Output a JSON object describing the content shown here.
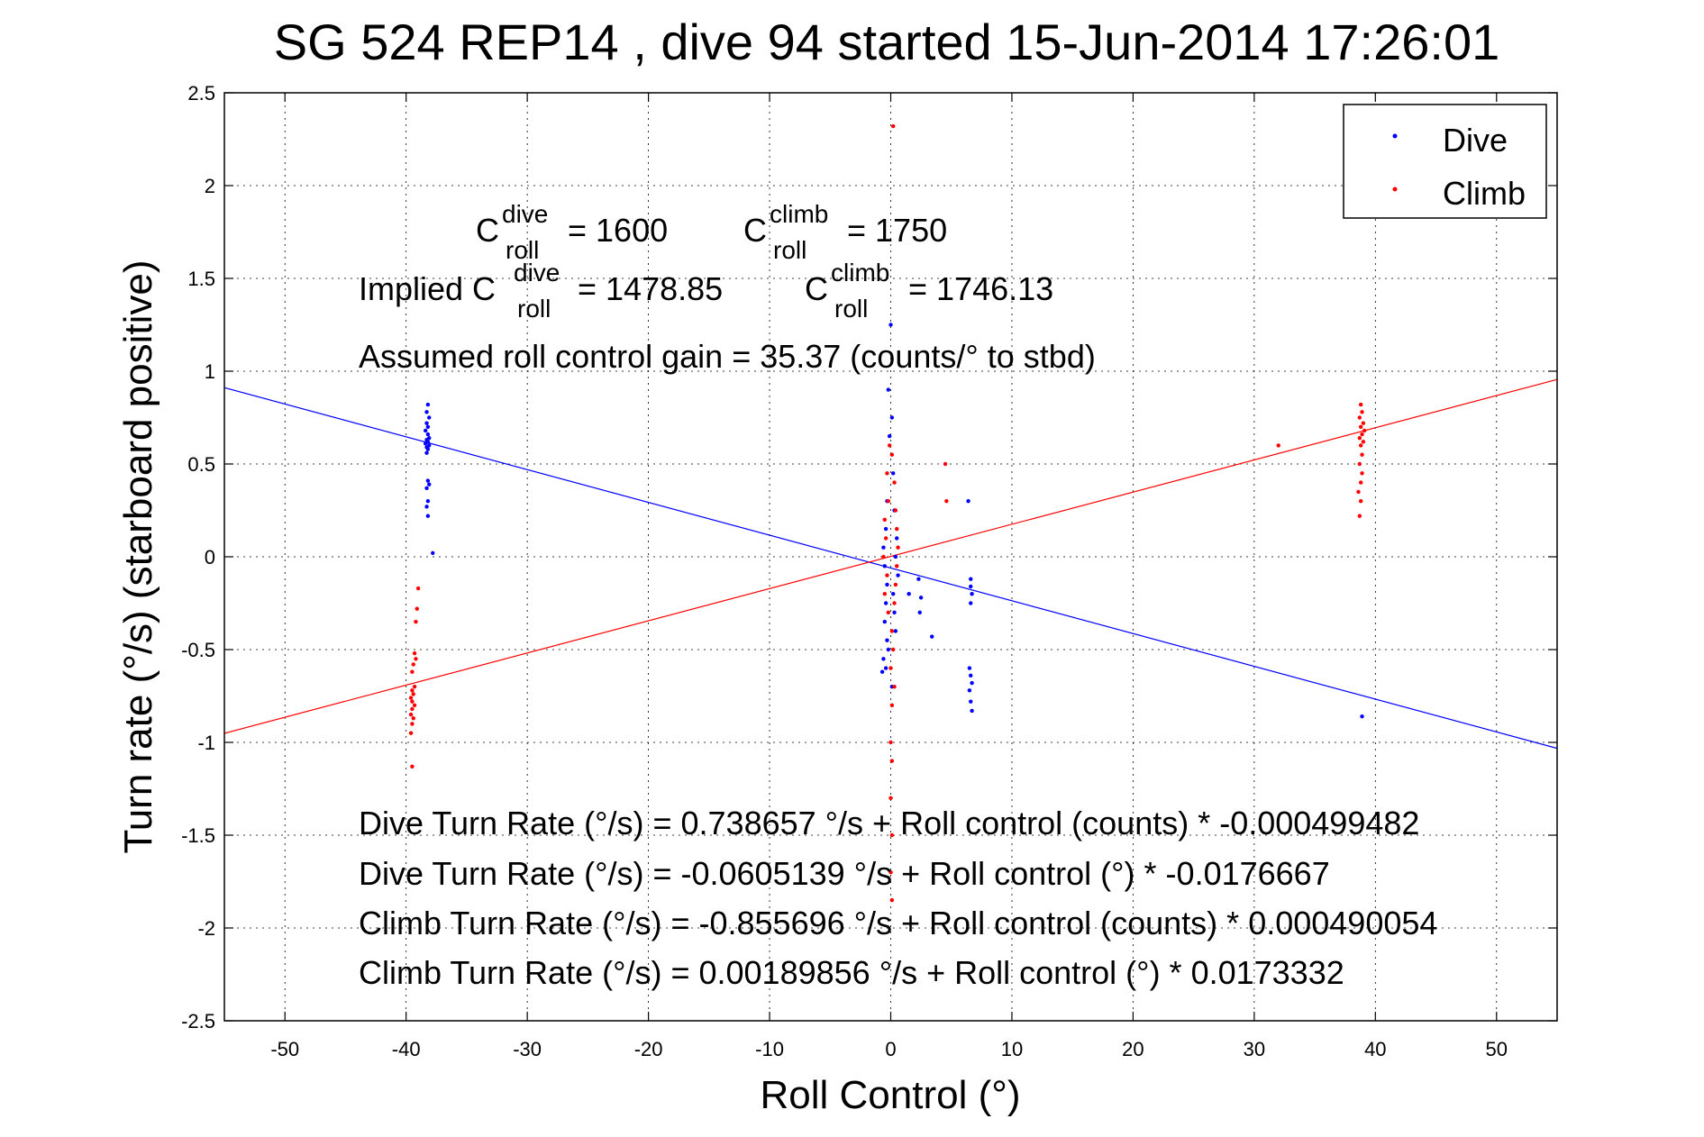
{
  "chart_data": {
    "type": "scatter",
    "title": "SG 524   REP14  , dive 94 started 15-Jun-2014 17:26:01",
    "xlabel": "Roll Control (°)",
    "ylabel": "Turn rate (°/s)  (starboard positive)",
    "xlim": [
      -55,
      55
    ],
    "ylim": [
      -2.5,
      2.5
    ],
    "xticks": [
      "-50",
      "-40",
      "-30",
      "-20",
      "-10",
      "0",
      "10",
      "20",
      "30",
      "40",
      "50"
    ],
    "yticks": [
      "2.5",
      "2",
      "1.5",
      "1",
      "0.5",
      "0",
      "-0.5",
      "-1",
      "-1.5",
      "-2",
      "-2.5"
    ],
    "grid": true,
    "legend_position": "top-right",
    "colors": {
      "dive": "#0000ff",
      "climb": "#ff0000"
    },
    "series": [
      {
        "name": "Dive",
        "color": "#0000ff",
        "points": [
          [
            -38.2,
            0.82
          ],
          [
            -38.3,
            0.78
          ],
          [
            -38.1,
            0.75
          ],
          [
            -38.3,
            0.72
          ],
          [
            -38.2,
            0.7
          ],
          [
            -38.4,
            0.68
          ],
          [
            -38.2,
            0.66
          ],
          [
            -38.1,
            0.64
          ],
          [
            -38.3,
            0.63
          ],
          [
            -38.2,
            0.62
          ],
          [
            -38.4,
            0.61
          ],
          [
            -38.1,
            0.6
          ],
          [
            -38.3,
            0.59
          ],
          [
            -38.2,
            0.58
          ],
          [
            -38.3,
            0.56
          ],
          [
            -38.2,
            0.41
          ],
          [
            -38.1,
            0.39
          ],
          [
            -38.3,
            0.37
          ],
          [
            -38.2,
            0.3
          ],
          [
            -38.3,
            0.27
          ],
          [
            -38.2,
            0.22
          ],
          [
            -37.8,
            0.02
          ],
          [
            0.0,
            1.25
          ],
          [
            -0.2,
            0.9
          ],
          [
            0.1,
            0.75
          ],
          [
            -0.1,
            0.65
          ],
          [
            0.2,
            0.45
          ],
          [
            -0.3,
            0.3
          ],
          [
            0.3,
            0.25
          ],
          [
            -0.4,
            0.15
          ],
          [
            0.5,
            0.1
          ],
          [
            -0.6,
            0.05
          ],
          [
            0.4,
            0.0
          ],
          [
            -0.5,
            -0.05
          ],
          [
            0.6,
            -0.1
          ],
          [
            -0.3,
            -0.15
          ],
          [
            0.2,
            -0.2
          ],
          [
            -0.4,
            -0.25
          ],
          [
            0.3,
            -0.3
          ],
          [
            -0.5,
            -0.35
          ],
          [
            0.4,
            -0.4
          ],
          [
            -0.3,
            -0.45
          ],
          [
            -0.2,
            -0.5
          ],
          [
            -0.6,
            -0.55
          ],
          [
            -0.4,
            -0.6
          ],
          [
            -0.7,
            -0.62
          ],
          [
            0.1,
            -0.7
          ],
          [
            1.5,
            -0.2
          ],
          [
            2.3,
            -0.12
          ],
          [
            2.5,
            -0.22
          ],
          [
            2.4,
            -0.3
          ],
          [
            3.4,
            -0.43
          ],
          [
            6.4,
            0.3
          ],
          [
            6.6,
            -0.12
          ],
          [
            6.6,
            -0.16
          ],
          [
            6.7,
            -0.2
          ],
          [
            6.6,
            -0.25
          ],
          [
            6.5,
            -0.6
          ],
          [
            6.6,
            -0.64
          ],
          [
            6.7,
            -0.68
          ],
          [
            6.5,
            -0.72
          ],
          [
            6.6,
            -0.78
          ],
          [
            6.7,
            -0.83
          ],
          [
            38.9,
            -0.86
          ]
        ]
      },
      {
        "name": "Climb",
        "color": "#ff0000",
        "points": [
          [
            -39.6,
            -0.95
          ],
          [
            -39.5,
            -0.9
          ],
          [
            -39.4,
            -0.87
          ],
          [
            -39.6,
            -0.85
          ],
          [
            -39.5,
            -0.82
          ],
          [
            -39.3,
            -0.8
          ],
          [
            -39.5,
            -0.78
          ],
          [
            -39.6,
            -0.76
          ],
          [
            -39.4,
            -0.74
          ],
          [
            -39.5,
            -0.72
          ],
          [
            -39.3,
            -0.7
          ],
          [
            -39.5,
            -0.62
          ],
          [
            -39.4,
            -0.58
          ],
          [
            -39.2,
            -0.55
          ],
          [
            -39.3,
            -0.52
          ],
          [
            -39.2,
            -0.35
          ],
          [
            -39.1,
            -0.28
          ],
          [
            -39.0,
            -0.17
          ],
          [
            -39.5,
            -1.13
          ],
          [
            0.2,
            2.32
          ],
          [
            -0.1,
            0.6
          ],
          [
            0.1,
            0.55
          ],
          [
            -0.3,
            0.45
          ],
          [
            0.3,
            0.4
          ],
          [
            -0.2,
            0.3
          ],
          [
            0.4,
            0.25
          ],
          [
            -0.5,
            0.2
          ],
          [
            0.5,
            0.15
          ],
          [
            -0.4,
            0.1
          ],
          [
            0.6,
            0.05
          ],
          [
            -0.6,
            0.0
          ],
          [
            0.5,
            -0.05
          ],
          [
            -0.3,
            -0.1
          ],
          [
            0.4,
            -0.15
          ],
          [
            -0.5,
            -0.2
          ],
          [
            0.3,
            -0.25
          ],
          [
            -0.2,
            -0.3
          ],
          [
            0.1,
            -0.4
          ],
          [
            0.2,
            -0.5
          ],
          [
            0.0,
            -0.6
          ],
          [
            0.3,
            -0.7
          ],
          [
            0.1,
            -0.8
          ],
          [
            0.0,
            -1.0
          ],
          [
            0.1,
            -1.1
          ],
          [
            0.0,
            -1.3
          ],
          [
            0.1,
            -1.5
          ],
          [
            0.0,
            -1.7
          ],
          [
            0.1,
            -1.85
          ],
          [
            4.5,
            0.5
          ],
          [
            4.6,
            0.3
          ],
          [
            32.0,
            0.6
          ],
          [
            38.8,
            0.82
          ],
          [
            38.9,
            0.78
          ],
          [
            38.7,
            0.75
          ],
          [
            39.0,
            0.72
          ],
          [
            38.8,
            0.7
          ],
          [
            39.1,
            0.68
          ],
          [
            38.9,
            0.66
          ],
          [
            38.7,
            0.64
          ],
          [
            39.0,
            0.62
          ],
          [
            38.8,
            0.6
          ],
          [
            38.9,
            0.55
          ],
          [
            38.7,
            0.5
          ],
          [
            38.9,
            0.45
          ],
          [
            38.8,
            0.4
          ],
          [
            38.6,
            0.35
          ],
          [
            38.8,
            0.3
          ],
          [
            38.7,
            0.22
          ]
        ]
      }
    ],
    "fit_lines": [
      {
        "name": "Dive fit",
        "color": "#0000ff",
        "intercept": -0.0605139,
        "slope": -0.0176667
      },
      {
        "name": "Climb fit",
        "color": "#ff0000",
        "intercept": 0.00189856,
        "slope": 0.0173332
      }
    ],
    "annotations": {
      "c_roll_dive_label": "C",
      "c_roll_dive_sup": "dive",
      "c_roll_dive_sub": "roll",
      "c_roll_dive_value": "= 1600",
      "c_roll_climb_label": "C",
      "c_roll_climb_sup": "climb",
      "c_roll_climb_sub": "roll",
      "c_roll_climb_value": "= 1750",
      "implied_prefix": "Implied C",
      "implied_dive_sup": "dive",
      "implied_dive_sub": "roll",
      "implied_dive_value": "= 1478.85",
      "implied_climb_label": "C",
      "implied_climb_sup": "climb",
      "implied_climb_sub": "roll",
      "implied_climb_value": "= 1746.13",
      "gain": "Assumed roll control gain = 35.37 (counts/° to stbd)",
      "eq1": "Dive Turn Rate (°/s) = 0.738657 °/s + Roll control (counts) * -0.000499482",
      "eq2": "Dive Turn Rate (°/s) = -0.0605139 °/s + Roll control (°) * -0.0176667",
      "eq3": "Climb Turn Rate (°/s) = -0.855696 °/s + Roll control (counts) * 0.000490054",
      "eq4": "Climb Turn Rate (°/s) = 0.00189856 °/s + Roll control (°) * 0.0173332"
    }
  }
}
